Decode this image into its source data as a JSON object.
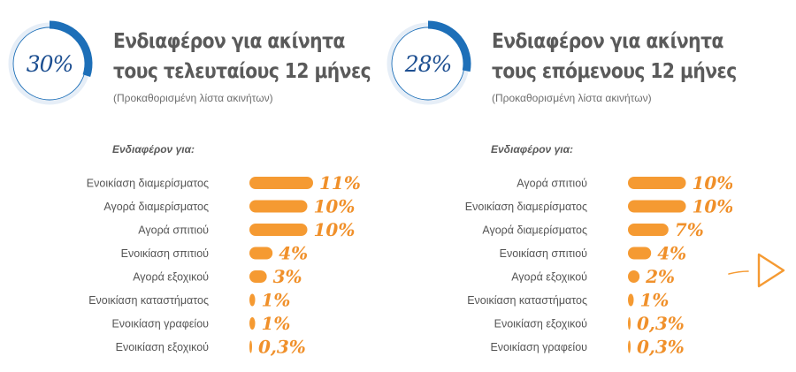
{
  "colors": {
    "accent": "#f59a32",
    "ring": "#1d6fb8",
    "ring_track": "#e6eef7",
    "text": "#5a5a5a"
  },
  "icons": {
    "next": "next-arrow-icon"
  },
  "panels": [
    {
      "pct": "30%",
      "pct_value": 30,
      "title_line1": "Ενδιαφέρον για ακίνητα",
      "title_line2": "τους τελευταίους 12 μήνες",
      "subtitle": "(Προκαθορισμένη λίστα ακινήτων)",
      "for_label": "Ενδιαφέρον για:"
    },
    {
      "pct": "28%",
      "pct_value": 28,
      "title_line1": "Ενδιαφέρον για ακίνητα",
      "title_line2": "τους επόμενους 12 μήνες",
      "subtitle": "(Προκαθορισμένη λίστα ακινήτων)",
      "for_label": "Ενδιαφέρον για:"
    }
  ],
  "chart_data": [
    {
      "type": "bar",
      "orientation": "horizontal",
      "title": "Ενδιαφέρον για ακίνητα τους τελευταίους 12 μήνες",
      "categories": [
        "Ενοικίαση διαμερίσματος",
        "Αγορά διαμερίσματος",
        "Αγορά σπιτιού",
        "Ενοικίαση σπιτιού",
        "Αγορά εξοχικού",
        "Ενοικίαση καταστήματος",
        "Ενοικίαση γραφείου",
        "Ενοικίαση εξοχικού"
      ],
      "values": [
        11,
        10,
        10,
        4,
        3,
        1,
        1,
        0.3
      ],
      "value_labels": [
        "11%",
        "10%",
        "10%",
        "4%",
        "3%",
        "1%",
        "1%",
        "0,3%"
      ],
      "xlim": [
        0,
        11
      ]
    },
    {
      "type": "bar",
      "orientation": "horizontal",
      "title": "Ενδιαφέρον για ακίνητα τους επόμενους 12 μήνες",
      "categories": [
        "Αγορά σπιτιού",
        "Ενοικίαση διαμερίσματος",
        "Αγορά διαμερίσματος",
        "Ενοικίαση σπιτιού",
        "Αγορά εξοχικού",
        "Ενοικίαση καταστήματος",
        "Ενοικίαση εξοχικού",
        "Ενοικίαση γραφείου"
      ],
      "values": [
        10,
        10,
        7,
        4,
        2,
        1,
        0.3,
        0.3
      ],
      "value_labels": [
        "10%",
        "10%",
        "7%",
        "4%",
        "2%",
        "1%",
        "0,3%",
        "0,3%"
      ],
      "xlim": [
        0,
        11
      ]
    }
  ]
}
